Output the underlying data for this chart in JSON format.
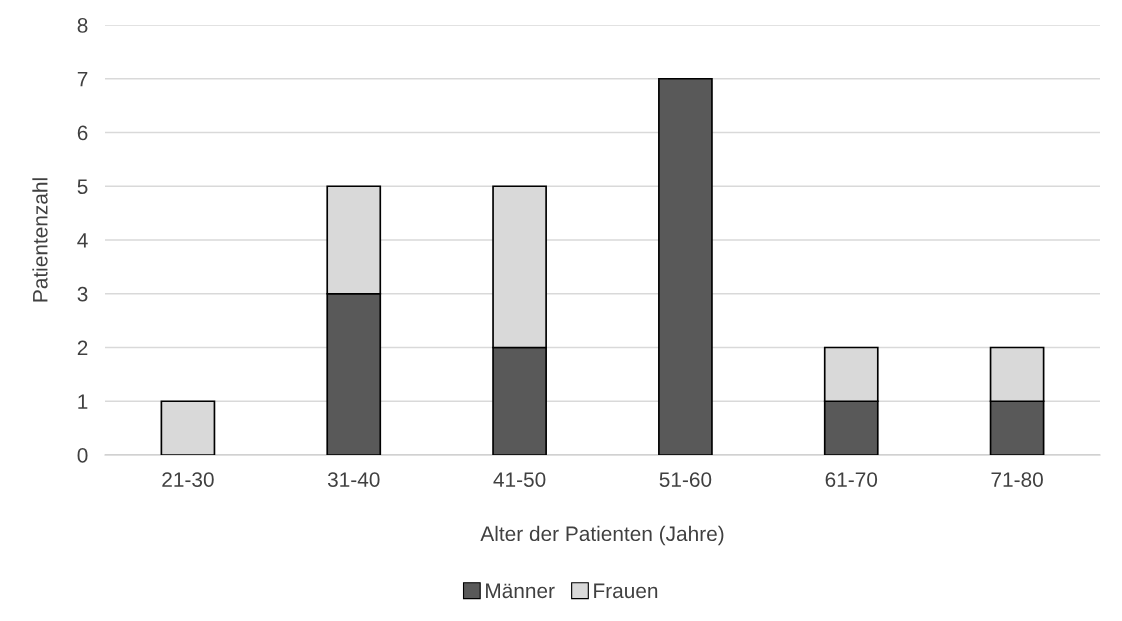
{
  "chart_data": {
    "type": "bar",
    "stacked": true,
    "xlabel": "Alter der Patienten (Jahre)",
    "ylabel": "Patientenzahl",
    "categories": [
      "21-30",
      "31-40",
      "41-50",
      "51-60",
      "61-70",
      "71-80"
    ],
    "series": [
      {
        "name": "Männer",
        "color": "#595959",
        "values": [
          0,
          3,
          2,
          7,
          1,
          1
        ]
      },
      {
        "name": "Frauen",
        "color": "#d9d9d9",
        "values": [
          1,
          2,
          3,
          0,
          1,
          1
        ]
      }
    ],
    "ylim": [
      0,
      8
    ],
    "yticks": [
      0,
      1,
      2,
      3,
      4,
      5,
      6,
      7,
      8
    ],
    "grid": "y",
    "legend": "bottom"
  }
}
